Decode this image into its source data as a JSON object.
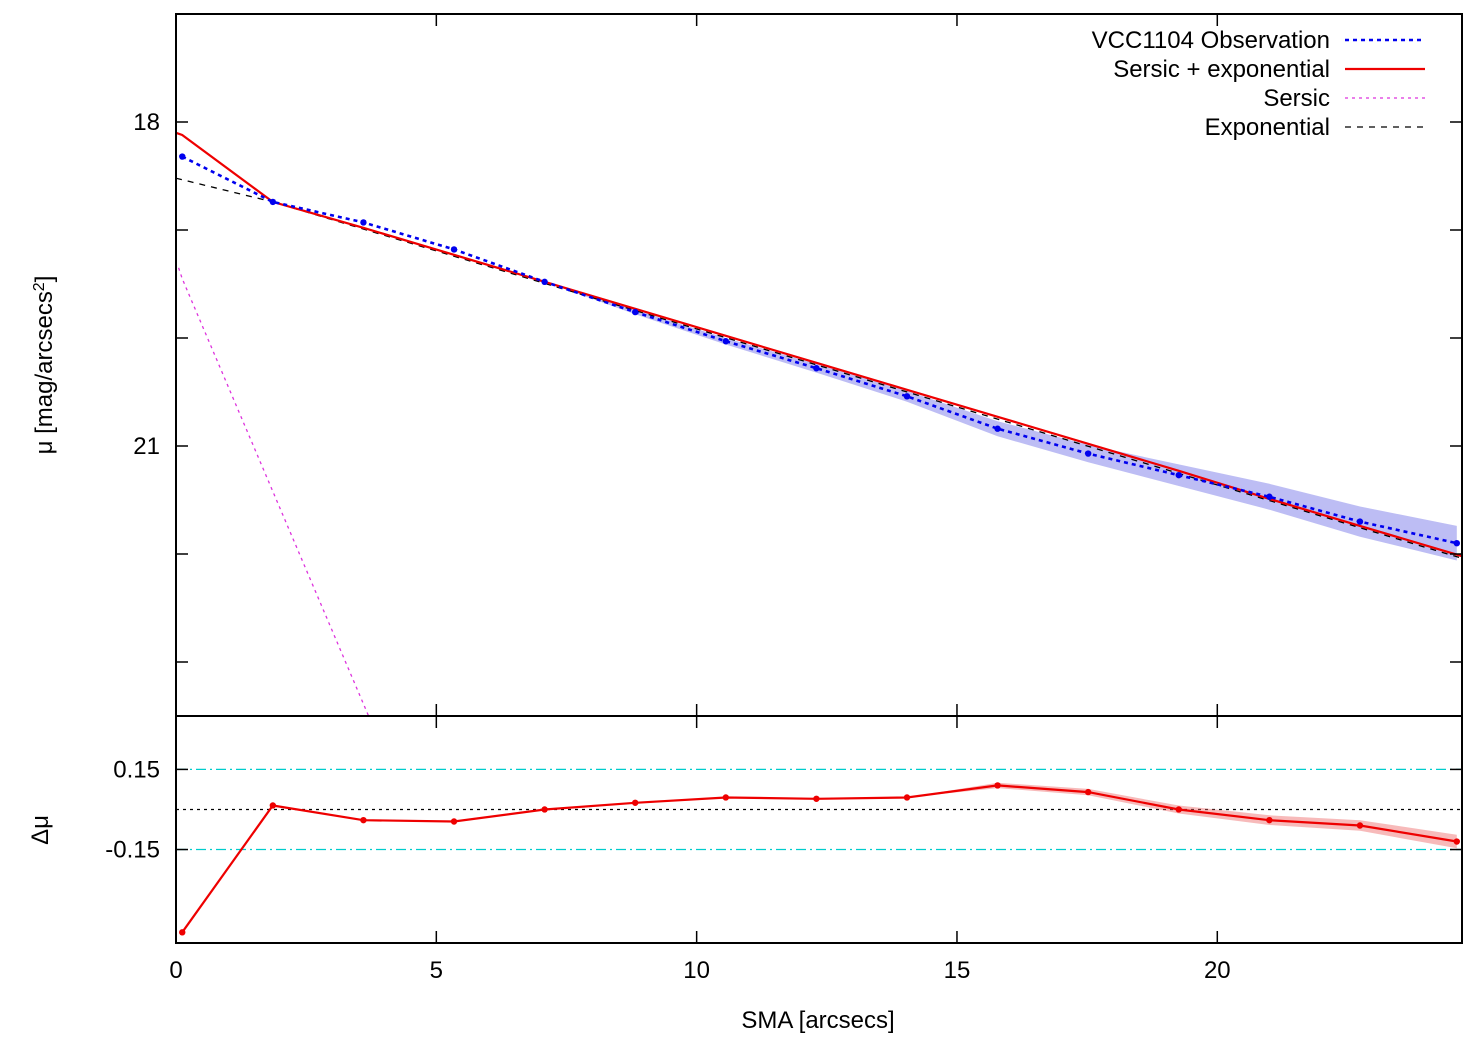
{
  "chart_data": [
    {
      "type": "line",
      "ylabel": "μ [mag/arcsecs",
      "ylabel_sup": "2",
      "ylabel_close": "]",
      "y_reversed": true,
      "xlim": [
        0,
        24.7
      ],
      "ylim_top_to_bottom": [
        17.0,
        23.5
      ],
      "yticks_labeled": [
        18,
        21
      ],
      "yticks_minor": [
        19,
        20,
        22,
        23
      ],
      "legend_position": "top-right",
      "series": [
        {
          "name": "VCC1104 Observation",
          "color": "#0000ee",
          "style": "dotted-with-points",
          "x": [
            0.12,
            1.86,
            3.6,
            5.34,
            7.08,
            8.82,
            10.56,
            12.3,
            14.04,
            15.78,
            17.52,
            19.26,
            21.0,
            22.74,
            24.6
          ],
          "y": [
            18.32,
            18.74,
            18.93,
            19.18,
            19.48,
            19.76,
            20.03,
            20.28,
            20.54,
            20.84,
            21.07,
            21.27,
            21.47,
            21.7,
            21.9
          ],
          "band": [
            0,
            0,
            0,
            0,
            0,
            0.02,
            0.03,
            0.04,
            0.05,
            0.07,
            0.08,
            0.1,
            0.12,
            0.14,
            0.16
          ]
        },
        {
          "name": "Sersic + exponential",
          "color": "#ee0000",
          "style": "solid",
          "x": [
            0,
            0.12,
            1.86,
            3.6,
            5.34,
            7.08,
            8.82,
            10.56,
            12.3,
            14.04,
            15.78,
            17.52,
            19.26,
            21.0,
            22.74,
            24.7
          ],
          "y": [
            18.1,
            18.12,
            18.74,
            18.98,
            19.23,
            19.48,
            19.73,
            19.98,
            20.23,
            20.48,
            20.73,
            20.98,
            21.23,
            21.49,
            21.74,
            22.02
          ]
        },
        {
          "name": "Sersic",
          "color": "#dd33dd",
          "style": "dotted",
          "x": [
            0.05,
            0.12,
            1.86,
            3.7
          ],
          "y": [
            19.35,
            19.45,
            21.42,
            23.5
          ]
        },
        {
          "name": "Exponential",
          "color": "#000000",
          "style": "dashed",
          "x": [
            0,
            1.86,
            24.7
          ],
          "y": [
            18.52,
            18.74,
            22.04
          ]
        }
      ]
    },
    {
      "type": "line",
      "xlabel": "SMA [arcsecs]",
      "ylabel": "Δμ",
      "xlim": [
        0,
        24.7
      ],
      "ylim": [
        -0.5,
        0.35
      ],
      "xticks": [
        0,
        5,
        10,
        15,
        20
      ],
      "yticks": [
        0.15,
        -0.15
      ],
      "reference_lines": [
        {
          "y": 0.15,
          "color": "#00cccc",
          "style": "dash-dot"
        },
        {
          "y": -0.15,
          "color": "#00cccc",
          "style": "dash-dot"
        },
        {
          "y": 0.0,
          "color": "#000000",
          "style": "dotted"
        }
      ],
      "series": [
        {
          "color": "#ee0000",
          "style": "solid-with-points",
          "x": [
            0.12,
            1.86,
            3.6,
            5.34,
            7.08,
            8.82,
            10.56,
            12.3,
            14.04,
            15.78,
            17.52,
            19.26,
            21.0,
            22.74,
            24.6
          ],
          "y": [
            -0.46,
            0.015,
            -0.04,
            -0.045,
            0.0,
            0.025,
            0.045,
            0.04,
            0.045,
            0.09,
            0.065,
            0.0,
            -0.04,
            -0.06,
            -0.12
          ],
          "band": [
            0,
            0,
            0,
            0,
            0,
            0,
            0,
            0,
            0,
            0.01,
            0.012,
            0.015,
            0.018,
            0.02,
            0.025
          ]
        }
      ]
    }
  ],
  "tick_labels": {
    "top_y": [
      "18",
      "21"
    ],
    "bottom_y": [
      "0.15",
      "-0.15"
    ],
    "x": [
      "0",
      "5",
      "10",
      "15",
      "20"
    ]
  }
}
